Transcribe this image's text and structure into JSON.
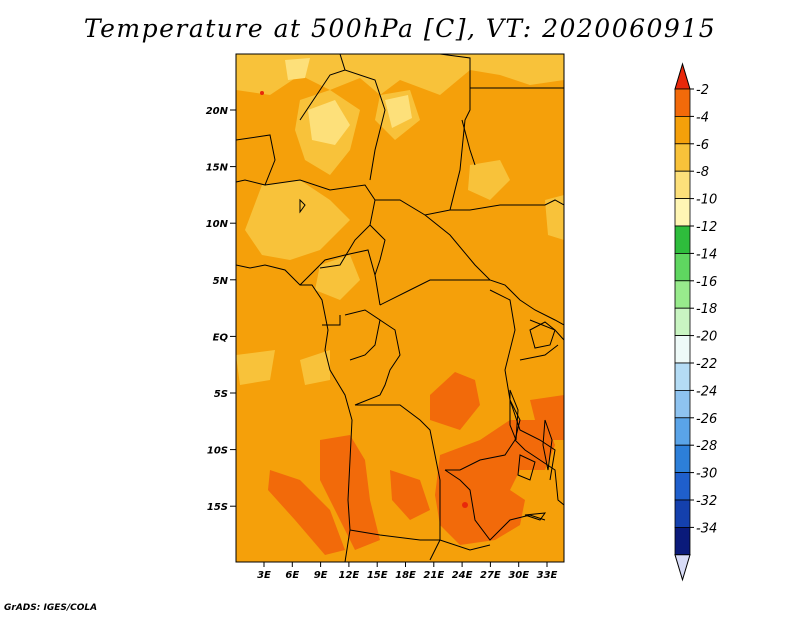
{
  "title": "Temperature at 500hPa [C], VT: 2020060915",
  "credit": "GrADS: IGES/COLA",
  "map": {
    "lat_labels": [
      "20N",
      "15N",
      "10N",
      "5N",
      "EQ",
      "5S",
      "10S",
      "15S"
    ],
    "lon_labels": [
      "3E",
      "6E",
      "9E",
      "12E",
      "15E",
      "18E",
      "21E",
      "24E",
      "27E",
      "30E",
      "33E"
    ],
    "background_color": "#f5a00a"
  },
  "colorbar": {
    "labels": [
      "-2",
      "-4",
      "-6",
      "-8",
      "-10",
      "-12",
      "-14",
      "-16",
      "-18",
      "-20",
      "-22",
      "-24",
      "-26",
      "-28",
      "-30",
      "-32",
      "-34"
    ],
    "colors": [
      "#e8280b",
      "#f26a0a",
      "#f5a00a",
      "#f8c23a",
      "#fde07a",
      "#fff6b4",
      "#2ebd3c",
      "#5fd660",
      "#98eb8c",
      "#c9f5c2",
      "#eefaf8",
      "#b4dcf5",
      "#8ec3f0",
      "#5aa4e8",
      "#2d7fd9",
      "#1f5fcc",
      "#1440ad",
      "#0a1a7a",
      "#d8dcf7"
    ]
  }
}
